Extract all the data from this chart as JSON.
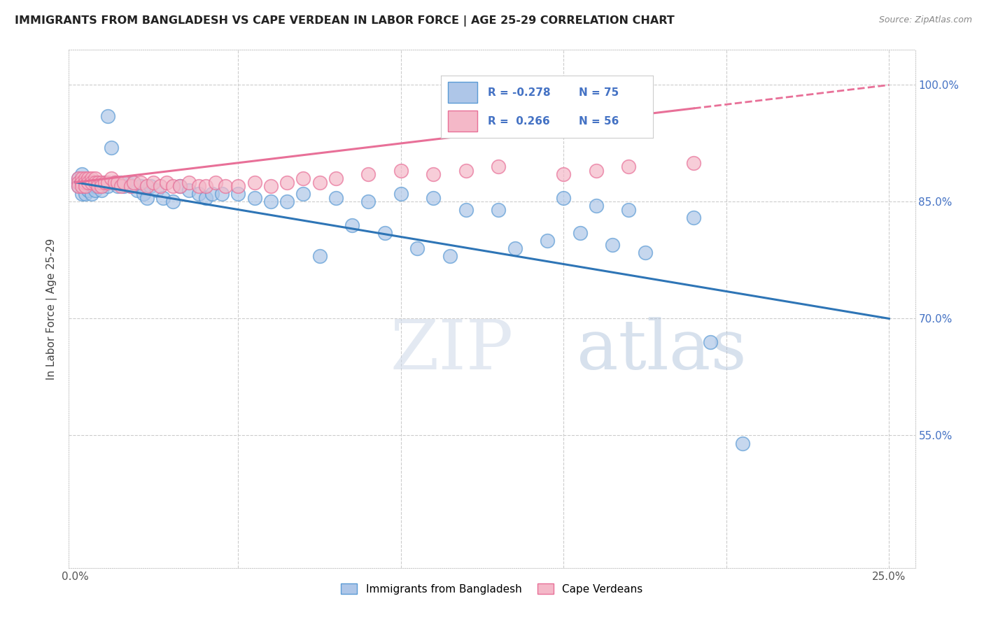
{
  "title": "IMMIGRANTS FROM BANGLADESH VS CAPE VERDEAN IN LABOR FORCE | AGE 25-29 CORRELATION CHART",
  "source": "Source: ZipAtlas.com",
  "ylabel": "In Labor Force | Age 25-29",
  "right_yticks": [
    1.0,
    0.85,
    0.7,
    0.55
  ],
  "right_yticklabels": [
    "100.0%",
    "85.0%",
    "70.0%",
    "55.0%"
  ],
  "xlim": [
    0.0,
    0.25
  ],
  "ylim": [
    0.38,
    1.04
  ],
  "blue_scatter_color": "#aec6e8",
  "blue_edge_color": "#5b9bd5",
  "pink_scatter_color": "#f4b8c8",
  "pink_edge_color": "#e87098",
  "blue_line_color": "#2e75b6",
  "pink_line_color": "#e87098",
  "right_axis_label_color": "#4472c4",
  "watermark_color": "#d0dff0",
  "legend_r1": "-0.278",
  "legend_n1": "75",
  "legend_r2": "0.266",
  "legend_n2": "56",
  "bang_x": [
    0.001,
    0.001,
    0.001,
    0.002,
    0.002,
    0.002,
    0.002,
    0.003,
    0.003,
    0.003,
    0.003,
    0.004,
    0.004,
    0.004,
    0.005,
    0.005,
    0.005,
    0.006,
    0.006,
    0.007,
    0.007,
    0.008,
    0.008,
    0.009,
    0.01,
    0.01,
    0.011,
    0.012,
    0.013,
    0.014,
    0.015,
    0.016,
    0.017,
    0.018,
    0.019,
    0.02,
    0.021,
    0.022,
    0.023,
    0.025,
    0.027,
    0.03,
    0.032,
    0.035,
    0.038,
    0.04,
    0.042,
    0.045,
    0.05,
    0.055,
    0.06,
    0.065,
    0.07,
    0.08,
    0.09,
    0.1,
    0.11,
    0.12,
    0.13,
    0.15,
    0.16,
    0.17,
    0.19,
    0.105,
    0.075,
    0.085,
    0.095,
    0.115,
    0.135,
    0.145,
    0.155,
    0.165,
    0.175,
    0.195,
    0.205
  ],
  "bang_y": [
    0.875,
    0.88,
    0.87,
    0.875,
    0.86,
    0.87,
    0.885,
    0.87,
    0.86,
    0.875,
    0.875,
    0.865,
    0.87,
    0.875,
    0.87,
    0.875,
    0.86,
    0.87,
    0.865,
    0.87,
    0.875,
    0.87,
    0.865,
    0.875,
    0.96,
    0.87,
    0.92,
    0.875,
    0.87,
    0.875,
    0.87,
    0.875,
    0.87,
    0.875,
    0.865,
    0.87,
    0.86,
    0.855,
    0.87,
    0.865,
    0.855,
    0.85,
    0.87,
    0.865,
    0.86,
    0.855,
    0.86,
    0.86,
    0.86,
    0.855,
    0.85,
    0.85,
    0.86,
    0.855,
    0.85,
    0.86,
    0.855,
    0.84,
    0.84,
    0.855,
    0.845,
    0.84,
    0.83,
    0.79,
    0.78,
    0.82,
    0.81,
    0.78,
    0.79,
    0.8,
    0.81,
    0.795,
    0.785,
    0.67,
    0.54
  ],
  "cape_x": [
    0.001,
    0.001,
    0.001,
    0.002,
    0.002,
    0.002,
    0.003,
    0.003,
    0.003,
    0.004,
    0.004,
    0.005,
    0.005,
    0.006,
    0.006,
    0.007,
    0.007,
    0.008,
    0.008,
    0.009,
    0.01,
    0.011,
    0.012,
    0.013,
    0.014,
    0.015,
    0.017,
    0.018,
    0.02,
    0.022,
    0.024,
    0.026,
    0.028,
    0.03,
    0.032,
    0.035,
    0.038,
    0.04,
    0.043,
    0.046,
    0.05,
    0.055,
    0.06,
    0.065,
    0.07,
    0.075,
    0.08,
    0.09,
    0.1,
    0.11,
    0.12,
    0.13,
    0.15,
    0.16,
    0.17,
    0.19
  ],
  "cape_y": [
    0.88,
    0.875,
    0.87,
    0.88,
    0.875,
    0.87,
    0.88,
    0.875,
    0.87,
    0.88,
    0.875,
    0.88,
    0.875,
    0.88,
    0.875,
    0.875,
    0.87,
    0.875,
    0.87,
    0.875,
    0.875,
    0.88,
    0.875,
    0.875,
    0.87,
    0.875,
    0.87,
    0.875,
    0.875,
    0.87,
    0.875,
    0.87,
    0.875,
    0.87,
    0.87,
    0.875,
    0.87,
    0.87,
    0.875,
    0.87,
    0.87,
    0.875,
    0.87,
    0.875,
    0.88,
    0.875,
    0.88,
    0.885,
    0.89,
    0.885,
    0.89,
    0.895,
    0.885,
    0.89,
    0.895,
    0.9
  ]
}
